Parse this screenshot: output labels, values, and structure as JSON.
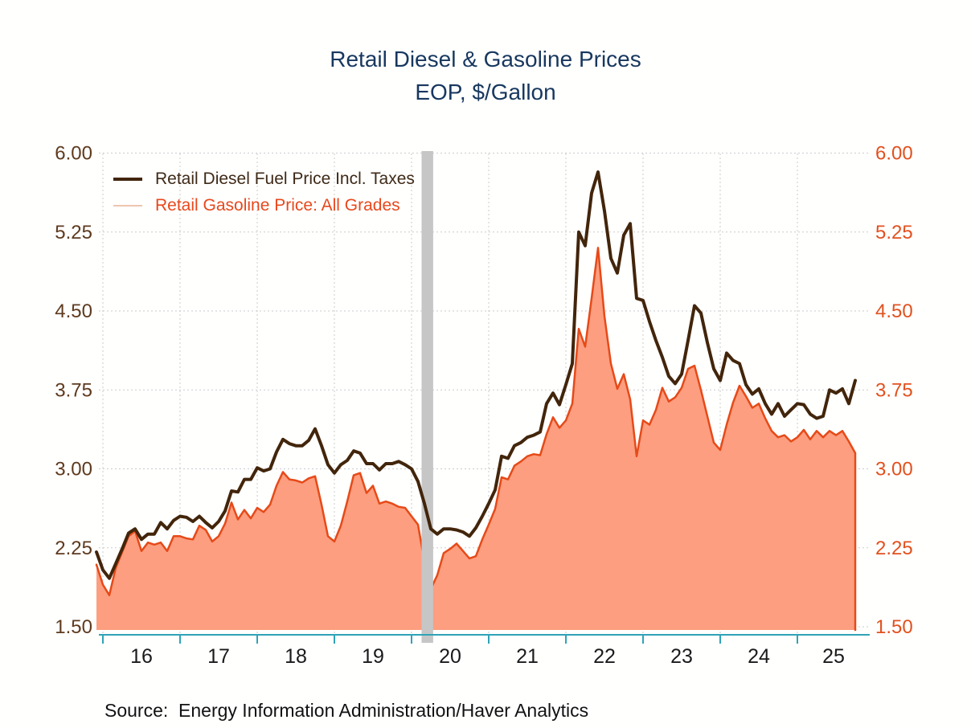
{
  "title": {
    "line1": "Retail Diesel & Gasoline Prices",
    "line2": "EOP, $/Gallon",
    "color": "#17375E"
  },
  "legend": {
    "items": [
      {
        "label": "Retail Diesel Fuel Price Incl. Taxes",
        "swatch_color": "#42250B",
        "swatch_thickness": 4,
        "text_color": "#3F2A17"
      },
      {
        "label": "Retail Gasoline Price: All Grades",
        "swatch_color": "#EFC5AE",
        "swatch_thickness": 2,
        "text_color": "#E8481C"
      }
    ]
  },
  "source": "Source:  Energy Information Administration/Haver Analytics",
  "axes": {
    "y_tick_values": [
      1.5,
      2.25,
      3.0,
      3.75,
      4.5,
      5.25,
      6.0
    ],
    "y_tick_labels": [
      "1.50",
      "2.25",
      "3.00",
      "3.75",
      "4.50",
      "5.25",
      "6.00"
    ],
    "y_min": 1.5,
    "y_max": 6.0,
    "left_label_color": "#5E3A1E",
    "right_label_color": "#E2511E",
    "x_tick_years": [
      2016,
      2017,
      2018,
      2019,
      2020,
      2021,
      2022,
      2023,
      2024,
      2025
    ],
    "x_tick_labels": [
      "16",
      "17",
      "18",
      "19",
      "20",
      "21",
      "22",
      "23",
      "24",
      "25"
    ],
    "x_label_color": "#1a1a1a",
    "axis_line_color": "#2FA3B8",
    "gridline_color": "#CBCBCB",
    "grid": "dotted"
  },
  "recession_band": {
    "start": 2020.13,
    "end": 2020.28,
    "color": "#C6C6C6"
  },
  "chart_data": {
    "type": "line",
    "x_start": 2015.9167,
    "x_step": 0.0833,
    "x_unit": "year (monthly samples, Dec 2015 - Oct 2025)",
    "xlim": [
      2015.85,
      2025.95
    ],
    "ylim": [
      1.5,
      6.0
    ],
    "title": "Retail Diesel & Gasoline Prices",
    "subtitle": "EOP, $/Gallon",
    "legend_position": "top-left-inside",
    "series": [
      {
        "name": "Retail Diesel Fuel Price Incl. Taxes",
        "style": "line",
        "color": "#42250B",
        "values": [
          2.21,
          2.04,
          1.96,
          2.1,
          2.24,
          2.39,
          2.43,
          2.33,
          2.38,
          2.38,
          2.49,
          2.43,
          2.51,
          2.55,
          2.54,
          2.5,
          2.55,
          2.49,
          2.44,
          2.5,
          2.6,
          2.79,
          2.78,
          2.9,
          2.9,
          3.01,
          2.98,
          3.0,
          3.16,
          3.28,
          3.24,
          3.22,
          3.22,
          3.27,
          3.38,
          3.22,
          3.04,
          2.96,
          3.04,
          3.08,
          3.17,
          3.15,
          3.05,
          3.05,
          2.99,
          3.05,
          3.05,
          3.07,
          3.04,
          3.0,
          2.88,
          2.67,
          2.43,
          2.38,
          2.43,
          2.43,
          2.42,
          2.4,
          2.36,
          2.44,
          2.55,
          2.67,
          2.8,
          3.12,
          3.1,
          3.22,
          3.25,
          3.3,
          3.32,
          3.35,
          3.62,
          3.72,
          3.61,
          3.8,
          4.0,
          5.25,
          5.12,
          5.62,
          5.82,
          5.45,
          5.0,
          4.86,
          5.22,
          5.33,
          4.62,
          4.6,
          4.4,
          4.22,
          4.06,
          3.88,
          3.81,
          3.9,
          4.22,
          4.55,
          4.48,
          4.2,
          3.95,
          3.84,
          4.1,
          4.03,
          4.0,
          3.8,
          3.71,
          3.76,
          3.62,
          3.52,
          3.62,
          3.5,
          3.56,
          3.62,
          3.61,
          3.52,
          3.48,
          3.5,
          3.75,
          3.72,
          3.76,
          3.62,
          3.84
        ]
      },
      {
        "name": "Retail Gasoline Price: All Grades",
        "style": "area",
        "line_color": "#E64A19",
        "fill_color": "#FC9E7F",
        "values": [
          2.09,
          1.9,
          1.8,
          2.06,
          2.21,
          2.36,
          2.41,
          2.22,
          2.3,
          2.28,
          2.3,
          2.22,
          2.36,
          2.36,
          2.34,
          2.33,
          2.46,
          2.42,
          2.31,
          2.36,
          2.48,
          2.68,
          2.52,
          2.61,
          2.53,
          2.63,
          2.59,
          2.66,
          2.84,
          2.97,
          2.9,
          2.89,
          2.87,
          2.91,
          2.93,
          2.66,
          2.36,
          2.31,
          2.46,
          2.69,
          2.94,
          2.96,
          2.77,
          2.84,
          2.67,
          2.69,
          2.67,
          2.64,
          2.63,
          2.55,
          2.47,
          2.12,
          1.86,
          1.99,
          2.2,
          2.24,
          2.29,
          2.22,
          2.15,
          2.17,
          2.33,
          2.47,
          2.62,
          2.92,
          2.9,
          3.03,
          3.07,
          3.12,
          3.14,
          3.13,
          3.33,
          3.49,
          3.39,
          3.46,
          3.62,
          4.33,
          4.16,
          4.62,
          5.1,
          4.45,
          4.0,
          3.76,
          3.9,
          3.66,
          3.12,
          3.46,
          3.42,
          3.56,
          3.77,
          3.64,
          3.68,
          3.77,
          3.95,
          3.98,
          3.75,
          3.5,
          3.25,
          3.18,
          3.42,
          3.63,
          3.79,
          3.69,
          3.58,
          3.62,
          3.48,
          3.36,
          3.3,
          3.32,
          3.26,
          3.3,
          3.37,
          3.28,
          3.36,
          3.3,
          3.36,
          3.32,
          3.36,
          3.26,
          3.15
        ]
      }
    ]
  }
}
